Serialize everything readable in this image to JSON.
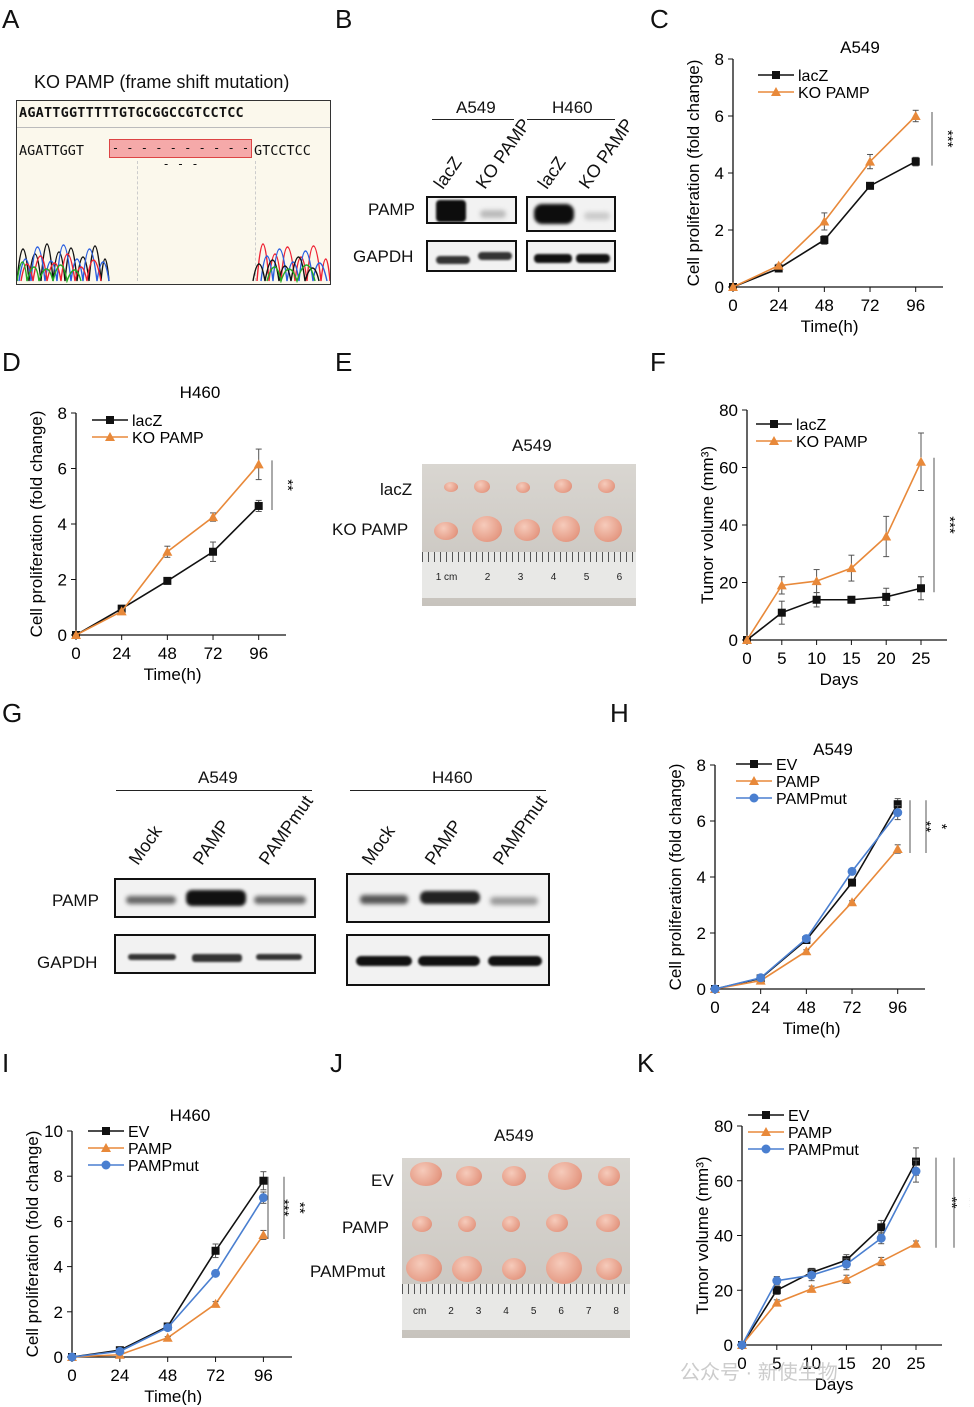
{
  "panels": {
    "A": "A",
    "B": "B",
    "C": "C",
    "D": "D",
    "E": "E",
    "F": "F",
    "G": "G",
    "H": "H",
    "I": "I",
    "J": "J",
    "K": "K"
  },
  "panelA": {
    "title": "KO PAMP (frame shift mutation)",
    "ref_seq": "AGATTGGTTTTTGTGCGGCCGTCCTCC",
    "mut_left": "AGATTGGT",
    "mut_gap": "- - - - - - - - - - - - -",
    "mut_right": "GTCCTCC"
  },
  "panelB": {
    "group1": "A549",
    "group2": "H460",
    "lanes": [
      "lacZ",
      "KO PAMP",
      "lacZ",
      "KO PAMP"
    ],
    "rows": [
      "PAMP",
      "GAPDH"
    ]
  },
  "panelE": {
    "title": "A549",
    "rows": [
      "lacZ",
      "KO PAMP"
    ],
    "ruler_marks": [
      "1 cm",
      "2",
      "3",
      "4",
      "5",
      "6"
    ]
  },
  "panelG": {
    "group1": "A549",
    "group2": "H460",
    "lanes": [
      "Mock",
      "PAMP",
      "PAMPmut",
      "Mock",
      "PAMP",
      "PAMPmut"
    ],
    "rows": [
      "PAMP",
      "GAPDH"
    ]
  },
  "panelJ": {
    "title": "A549",
    "rows": [
      "EV",
      "PAMP",
      "PAMPmut"
    ],
    "ruler_marks": [
      "cm",
      "2",
      "3",
      "4",
      "5",
      "6",
      "7",
      "8"
    ]
  },
  "watermark": "公众号 · 新使生物",
  "colors": {
    "black": "#111111",
    "orange": "#e8893a",
    "blue": "#4a7fd0"
  },
  "chart_data": [
    {
      "id": "C",
      "type": "line",
      "title": "A549",
      "xlabel": "Time(h)",
      "ylabel": "Cell proliferation (fold change)",
      "x": [
        0,
        24,
        48,
        72,
        96
      ],
      "ylim": [
        0,
        8
      ],
      "yticks": [
        0,
        2,
        4,
        6,
        8
      ],
      "series": [
        {
          "name": "lacZ",
          "color": "#111111",
          "marker": "square",
          "values": [
            0,
            0.65,
            1.65,
            3.55,
            4.4
          ],
          "err": [
            0,
            0.05,
            0.15,
            0.1,
            0.15
          ]
        },
        {
          "name": "KO PAMP",
          "color": "#e8893a",
          "marker": "triangle",
          "values": [
            0,
            0.75,
            2.3,
            4.4,
            6.0
          ],
          "err": [
            0,
            0.05,
            0.3,
            0.25,
            0.2
          ]
        }
      ],
      "sig": [
        {
          "text": "***"
        }
      ]
    },
    {
      "id": "D",
      "type": "line",
      "title": "H460",
      "xlabel": "Time(h)",
      "ylabel": "Cell proliferation (fold change)",
      "x": [
        0,
        24,
        48,
        72,
        96
      ],
      "ylim": [
        0,
        8
      ],
      "yticks": [
        0,
        2,
        4,
        6,
        8
      ],
      "series": [
        {
          "name": "lacZ",
          "color": "#111111",
          "marker": "square",
          "values": [
            0,
            0.95,
            1.95,
            3.0,
            4.65
          ],
          "err": [
            0,
            0.05,
            0.05,
            0.35,
            0.2
          ]
        },
        {
          "name": "KO PAMP",
          "color": "#e8893a",
          "marker": "triangle",
          "values": [
            0,
            0.85,
            3.0,
            4.25,
            6.15
          ],
          "err": [
            0,
            0.05,
            0.2,
            0.15,
            0.55
          ]
        }
      ],
      "sig": [
        {
          "text": "**"
        }
      ]
    },
    {
      "id": "F",
      "type": "line",
      "title": "",
      "xlabel": "Days",
      "ylabel": "Tumor volume (mm³)",
      "x": [
        0,
        5,
        10,
        15,
        20,
        25
      ],
      "ylim": [
        0,
        80
      ],
      "yticks": [
        0,
        20,
        40,
        60,
        80
      ],
      "series": [
        {
          "name": "lacZ",
          "color": "#111111",
          "marker": "square",
          "values": [
            0,
            9.5,
            14,
            14,
            15,
            18
          ],
          "err": [
            0,
            4,
            2.5,
            1,
            3,
            4
          ]
        },
        {
          "name": "KO PAMP",
          "color": "#e8893a",
          "marker": "triangle",
          "values": [
            0,
            19,
            20.5,
            25,
            36,
            62
          ],
          "err": [
            0,
            3,
            4,
            4.5,
            7,
            10
          ]
        }
      ],
      "sig": [
        {
          "text": "***"
        }
      ]
    },
    {
      "id": "H",
      "type": "line",
      "title": "A549",
      "xlabel": "Time(h)",
      "ylabel": "Cell proliferation (fold change)",
      "x": [
        0,
        24,
        48,
        72,
        96
      ],
      "ylim": [
        0,
        8
      ],
      "yticks": [
        0,
        2,
        4,
        6,
        8
      ],
      "series": [
        {
          "name": "EV",
          "color": "#111111",
          "marker": "square",
          "values": [
            0,
            0.38,
            1.75,
            3.8,
            6.6
          ],
          "err": [
            0,
            0.05,
            0.1,
            0.1,
            0.2
          ]
        },
        {
          "name": "PAMP",
          "color": "#e8893a",
          "marker": "triangle",
          "values": [
            0,
            0.3,
            1.35,
            3.1,
            5.0
          ],
          "err": [
            0,
            0.05,
            0.05,
            0.05,
            0.15
          ]
        },
        {
          "name": "PAMPmut",
          "color": "#4a7fd0",
          "marker": "circle",
          "values": [
            0,
            0.4,
            1.8,
            4.2,
            6.3
          ],
          "err": [
            0,
            0.05,
            0.1,
            0.1,
            0.25
          ]
        }
      ],
      "sig": [
        {
          "text": "**"
        },
        {
          "text": "*"
        }
      ]
    },
    {
      "id": "I",
      "type": "line",
      "title": "H460",
      "xlabel": "Time(h)",
      "ylabel": "Cell proliferation (fold change)",
      "x": [
        0,
        24,
        48,
        72,
        96
      ],
      "ylim": [
        0,
        10
      ],
      "yticks": [
        0,
        2,
        4,
        6,
        8,
        10
      ],
      "series": [
        {
          "name": "EV",
          "color": "#111111",
          "marker": "square",
          "values": [
            0,
            0.3,
            1.35,
            4.7,
            7.8
          ],
          "err": [
            0,
            0.05,
            0.1,
            0.3,
            0.4
          ]
        },
        {
          "name": "PAMP",
          "color": "#e8893a",
          "marker": "triangle",
          "values": [
            0,
            0.1,
            0.85,
            2.35,
            5.4
          ],
          "err": [
            0,
            0.05,
            0.05,
            0.1,
            0.2
          ]
        },
        {
          "name": "PAMPmut",
          "color": "#4a7fd0",
          "marker": "circle",
          "values": [
            0,
            0.25,
            1.3,
            3.7,
            7.05
          ],
          "err": [
            0,
            0.05,
            0.1,
            0.1,
            0.25
          ]
        }
      ],
      "sig": [
        {
          "text": "***"
        },
        {
          "text": "**"
        }
      ]
    },
    {
      "id": "K",
      "type": "line",
      "title": "",
      "xlabel": "Days",
      "ylabel": "Tumor volume (mm³)",
      "x": [
        0,
        5,
        10,
        15,
        20,
        25
      ],
      "ylim": [
        0,
        80
      ],
      "yticks": [
        0,
        20,
        40,
        60,
        80
      ],
      "series": [
        {
          "name": "EV",
          "color": "#111111",
          "marker": "square",
          "values": [
            0,
            20,
            26.5,
            31,
            43,
            67
          ],
          "err": [
            0,
            1.5,
            1.5,
            2,
            2.5,
            5
          ]
        },
        {
          "name": "PAMP",
          "color": "#e8893a",
          "marker": "triangle",
          "values": [
            0,
            15.5,
            20.5,
            24,
            30.5,
            37
          ],
          "err": [
            0,
            1,
            1,
            1.5,
            1.5,
            1
          ]
        },
        {
          "name": "PAMPmut",
          "color": "#4a7fd0",
          "marker": "circle",
          "values": [
            0,
            23.5,
            25.5,
            29.5,
            39,
            63.5
          ],
          "err": [
            0,
            1.5,
            2,
            2,
            2,
            4
          ]
        }
      ],
      "sig": [
        {
          "text": "**"
        },
        {
          "text": "**"
        }
      ]
    }
  ]
}
